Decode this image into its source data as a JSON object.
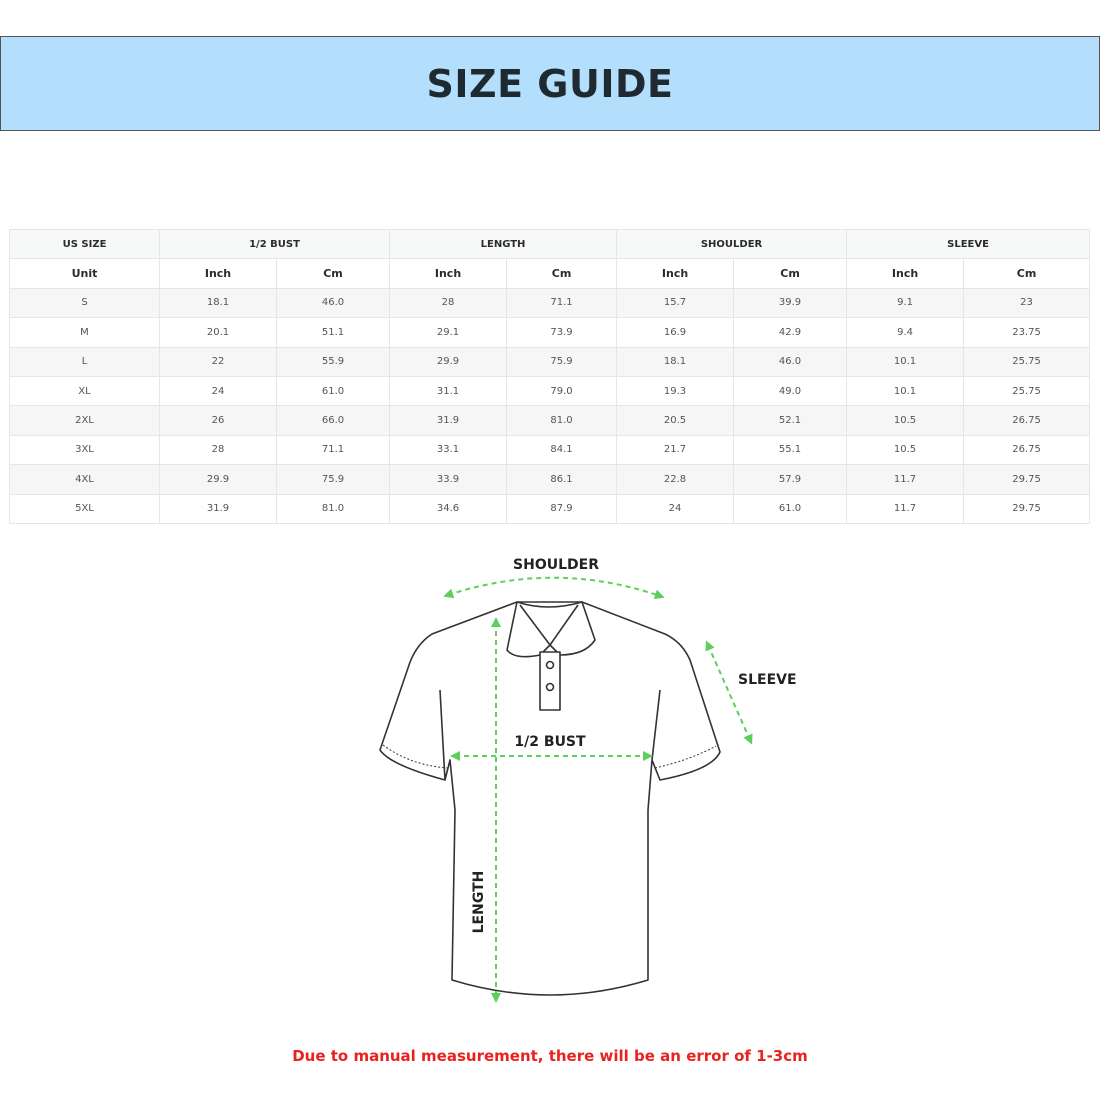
{
  "title": "SIZE GUIDE",
  "table": {
    "groups": [
      "US SIZE",
      "1/2 BUST",
      "LENGTH",
      "SHOULDER",
      "SLEEVE"
    ],
    "units": [
      "Unit",
      "Inch",
      "Cm",
      "Inch",
      "Cm",
      "Inch",
      "Cm",
      "Inch",
      "Cm"
    ],
    "rows": [
      [
        "S",
        "18.1",
        "46.0",
        "28",
        "71.1",
        "15.7",
        "39.9",
        "9.1",
        "23"
      ],
      [
        "M",
        "20.1",
        "51.1",
        "29.1",
        "73.9",
        "16.9",
        "42.9",
        "9.4",
        "23.75"
      ],
      [
        "L",
        "22",
        "55.9",
        "29.9",
        "75.9",
        "18.1",
        "46.0",
        "10.1",
        "25.75"
      ],
      [
        "XL",
        "24",
        "61.0",
        "31.1",
        "79.0",
        "19.3",
        "49.0",
        "10.1",
        "25.75"
      ],
      [
        "2XL",
        "26",
        "66.0",
        "31.9",
        "81.0",
        "20.5",
        "52.1",
        "10.5",
        "26.75"
      ],
      [
        "3XL",
        "28",
        "71.1",
        "33.1",
        "84.1",
        "21.7",
        "55.1",
        "10.5",
        "26.75"
      ],
      [
        "4XL",
        "29.9",
        "75.9",
        "33.9",
        "86.1",
        "22.8",
        "57.9",
        "11.7",
        "29.75"
      ],
      [
        "5XL",
        "31.9",
        "81.0",
        "34.6",
        "87.9",
        "24",
        "61.0",
        "11.7",
        "29.75"
      ]
    ]
  },
  "diagram": {
    "shoulder": "SHOULDER",
    "sleeve": "SLEEVE",
    "bust": "1/2 BUST",
    "length": "LENGTH"
  },
  "note": "Due to manual measurement, there will be an error of 1-3cm",
  "colors": {
    "banner": "#b3defc",
    "arrow": "#5ccf5c",
    "note": "#e8231f"
  }
}
